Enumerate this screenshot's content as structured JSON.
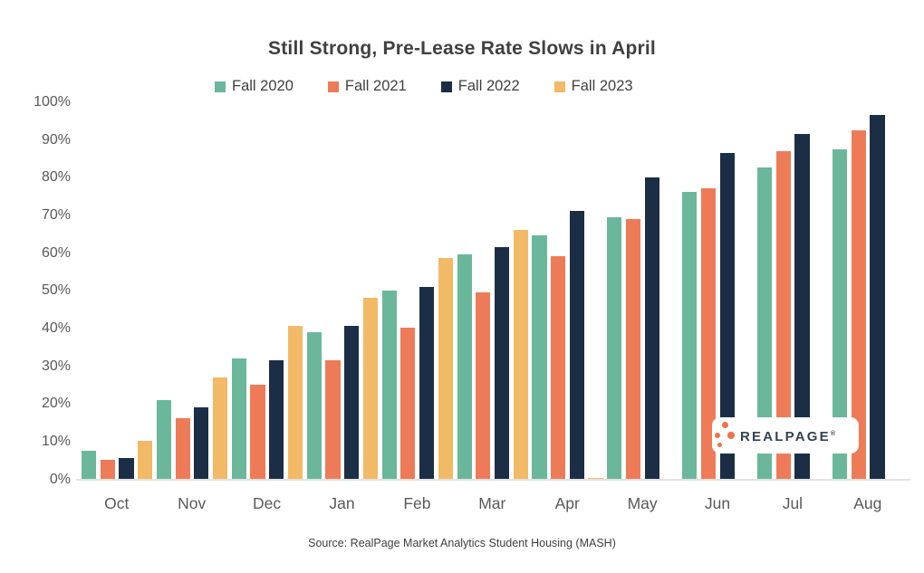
{
  "title": "Still Strong, Pre-Lease Rate Slows in April",
  "source": "Source: RealPage Market Analytics Student Housing (MASH)",
  "logo": {
    "brand": "REALPAGE",
    "registered_mark": "®"
  },
  "colors": {
    "fall_2020": "#6ab79c",
    "fall_2021": "#ee7b58",
    "fall_2022": "#1c2e45",
    "fall_2023": "#f2b966",
    "title_text": "#404040",
    "axis_text": "#595959",
    "axis_line": "#e3e3e3",
    "logo_dot_orange": "#ee7148",
    "logo_text_navy": "#33424f"
  },
  "chart_data": {
    "type": "bar",
    "title": "Still Strong, Pre-Lease Rate Slows in April",
    "categories": [
      "Oct",
      "Nov",
      "Dec",
      "Jan",
      "Feb",
      "Mar",
      "Apr",
      "May",
      "Jun",
      "Jul",
      "Aug"
    ],
    "series": [
      {
        "name": "Fall 2020",
        "color": "#6ab79c",
        "values": [
          7.5,
          21,
          32,
          39,
          50,
          59.5,
          64.5,
          69.5,
          76,
          82.5,
          87.5
        ]
      },
      {
        "name": "Fall 2021",
        "color": "#ee7b58",
        "values": [
          5,
          16,
          25,
          31.5,
          40,
          49.5,
          59,
          69,
          77,
          87,
          92.5
        ]
      },
      {
        "name": "Fall 2022",
        "color": "#1c2e45",
        "values": [
          5.5,
          19,
          31.5,
          40.5,
          51,
          61.5,
          71,
          80,
          86.5,
          91.5,
          96.5
        ]
      },
      {
        "name": "Fall 2023",
        "color": "#f2b966",
        "values": [
          10,
          27,
          40.5,
          48,
          58.5,
          66,
          0.2,
          null,
          null,
          null,
          null
        ]
      }
    ],
    "xlabel": "",
    "ylabel": "",
    "y_tick_labels": [
      "100%",
      "90%",
      "80%",
      "70%",
      "60%",
      "50%",
      "40%",
      "30%",
      "20%",
      "10%",
      "0%"
    ],
    "ylim": [
      0,
      100
    ],
    "grid": false,
    "legend_position": "top-center"
  }
}
